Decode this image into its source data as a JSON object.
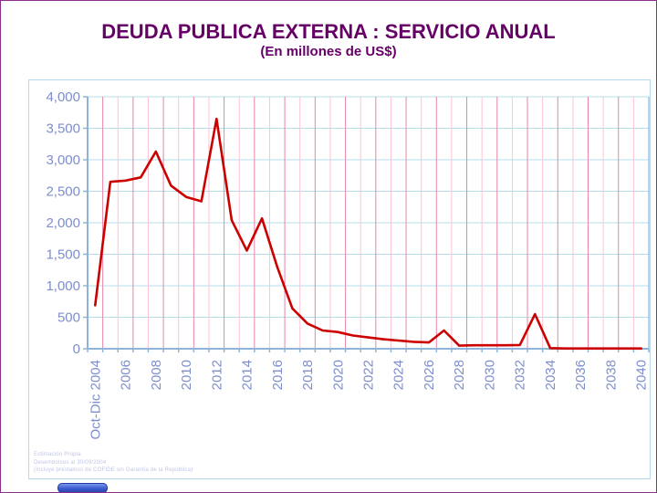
{
  "header": {
    "title": "DEUDA PUBLICA EXTERNA : SERVICIO ANUAL",
    "subtitle": "(En millones de US$)"
  },
  "chart_data": {
    "type": "line",
    "title": "DEUDA PUBLICA EXTERNA : SERVICIO ANUAL",
    "subtitle": "(En millones de US$)",
    "categories": [
      "Oct-Dic 2004",
      "2005",
      "2006",
      "2007",
      "2008",
      "2009",
      "2010",
      "2011",
      "2012",
      "2013",
      "2014",
      "2015",
      "2016",
      "2017",
      "2018",
      "2019",
      "2020",
      "2021",
      "2022",
      "2023",
      "2024",
      "2025",
      "2026",
      "2027",
      "2028",
      "2029",
      "2030",
      "2031",
      "2032",
      "2033",
      "2034",
      "2035",
      "2036",
      "2037",
      "2038",
      "2039",
      "2040"
    ],
    "values": [
      690,
      2650,
      2670,
      2720,
      3130,
      2590,
      2410,
      2340,
      3650,
      2040,
      1560,
      2070,
      1300,
      640,
      400,
      290,
      265,
      210,
      180,
      150,
      130,
      110,
      100,
      290,
      50,
      55,
      55,
      55,
      60,
      550,
      10,
      5,
      5,
      5,
      5,
      5,
      5
    ],
    "xlabel": "",
    "ylabel": "",
    "ylim": [
      0,
      4000
    ],
    "ytick_step": 500,
    "yticks": [
      "0",
      "500",
      "1,000",
      "1,500",
      "2,000",
      "2,500",
      "3,000",
      "3,500",
      "4,000"
    ],
    "x_labeled_categories": [
      "Oct-Dic 2004",
      "2006",
      "2008",
      "2010",
      "2012",
      "2014",
      "2016",
      "2018",
      "2020",
      "2022",
      "2024",
      "2026",
      "2028",
      "2030",
      "2032",
      "2034",
      "2036",
      "2038",
      "2040"
    ],
    "label_every": 2,
    "grid": {
      "horizontal": true,
      "vertical": true
    },
    "legend": false
  },
  "footnotes": {
    "line1": "Estimación Propia",
    "line2": "Desembolsos al 30/09/2004",
    "line3": "(Incluye préstamos de COFIDE sin Garantía de la República)"
  },
  "colors": {
    "title_text": "#660066",
    "line": "#cc0000",
    "axis": "#8fb4dc",
    "hgrid": "#b4dcec",
    "vgrid_major": "#e884a8",
    "vgrid_minor": "#fcc4d4",
    "axis_label": "#7e8ecc",
    "footnote": "#c0c4e8",
    "page_border": "#8a2e8a",
    "chart_border": "#b8d8ec",
    "blue_bar_fill": "#3c5cd0",
    "blue_bar_border": "#1c3aa8"
  }
}
